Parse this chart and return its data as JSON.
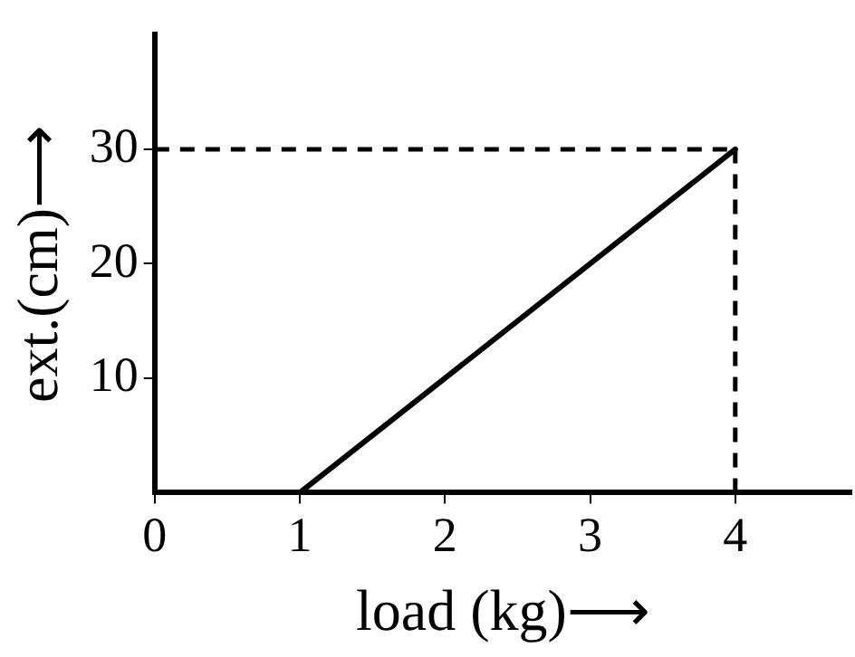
{
  "chart_data": {
    "type": "line",
    "xlabel": "load (kg)⟶",
    "ylabel": "ext.(cm)⟶",
    "x": [
      1,
      4
    ],
    "series": [
      {
        "color": "#000000",
        "values": [
          0,
          30
        ]
      }
    ],
    "xlim": [
      0,
      4.8
    ],
    "xticks": [
      0,
      1,
      2,
      3,
      4
    ],
    "ylim": [
      0,
      40
    ],
    "yticks": [
      10,
      20,
      30
    ],
    "ref_lines": [
      {
        "axis": "y",
        "value": 30,
        "color": "#000000",
        "line_style": "dashed"
      },
      {
        "axis": "x",
        "value": 4,
        "color": "#000000",
        "line_style": "dashed"
      }
    ],
    "grid": false,
    "legend": false,
    "marker": "none",
    "line_style": "solid"
  }
}
